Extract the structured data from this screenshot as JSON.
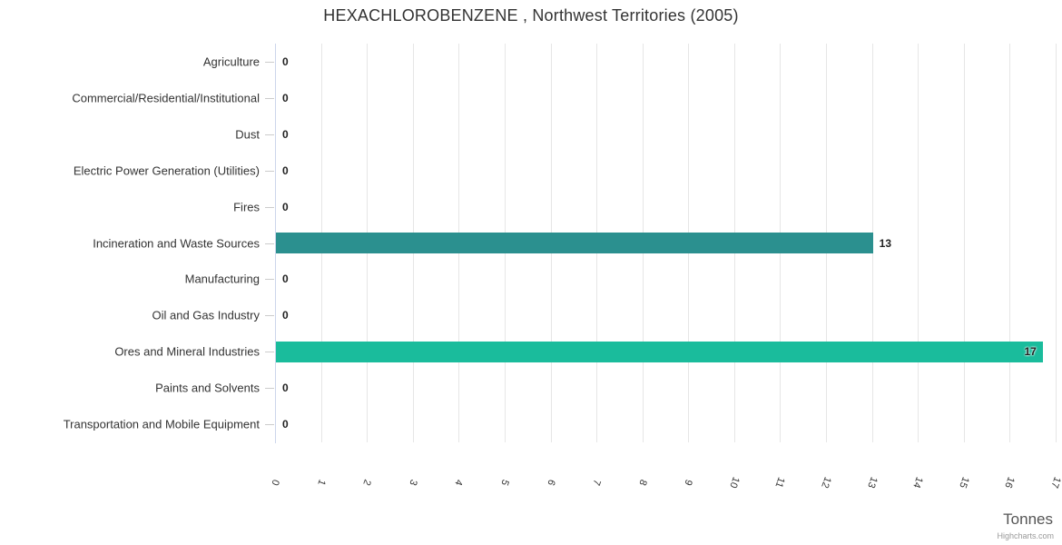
{
  "credits": "Highcharts.com",
  "chart_data": {
    "type": "bar",
    "orientation": "horizontal",
    "title": "HEXACHLOROBENZENE , Northwest Territories (2005)",
    "xlabel": "Tonnes",
    "xlim": [
      0,
      17
    ],
    "x_ticks": [
      0,
      1,
      2,
      3,
      4,
      5,
      6,
      7,
      8,
      9,
      10,
      11,
      12,
      13,
      14,
      15,
      16,
      17
    ],
    "grid": true,
    "legend": false,
    "categories": [
      "Agriculture",
      "Commercial/Residential/Institutional",
      "Dust",
      "Electric Power Generation (Utilities)",
      "Fires",
      "Incineration and Waste Sources",
      "Manufacturing",
      "Oil and Gas Industry",
      "Ores and Mineral Industries",
      "Paints and Solvents",
      "Transportation and Mobile Equipment"
    ],
    "values": [
      0,
      0,
      0,
      0,
      0,
      13,
      0,
      0,
      16.7,
      0,
      0
    ],
    "value_labels": [
      "0",
      "0",
      "0",
      "0",
      "0",
      "13",
      "0",
      "0",
      "17",
      "0",
      "0"
    ],
    "bar_colors": [
      null,
      null,
      null,
      null,
      null,
      "#2b908f",
      null,
      null,
      "#1abc9c",
      null,
      null
    ]
  },
  "colors": {
    "grid": "#e6e6e6",
    "axis_line": "#ccd6eb",
    "tick": "#cccccc",
    "title_text": "#333333",
    "category_text": "#333333",
    "data_label_text": "#222222",
    "x_tick_text": "#333333",
    "axis_title_text": "#555555",
    "credit_text": "#999999"
  }
}
